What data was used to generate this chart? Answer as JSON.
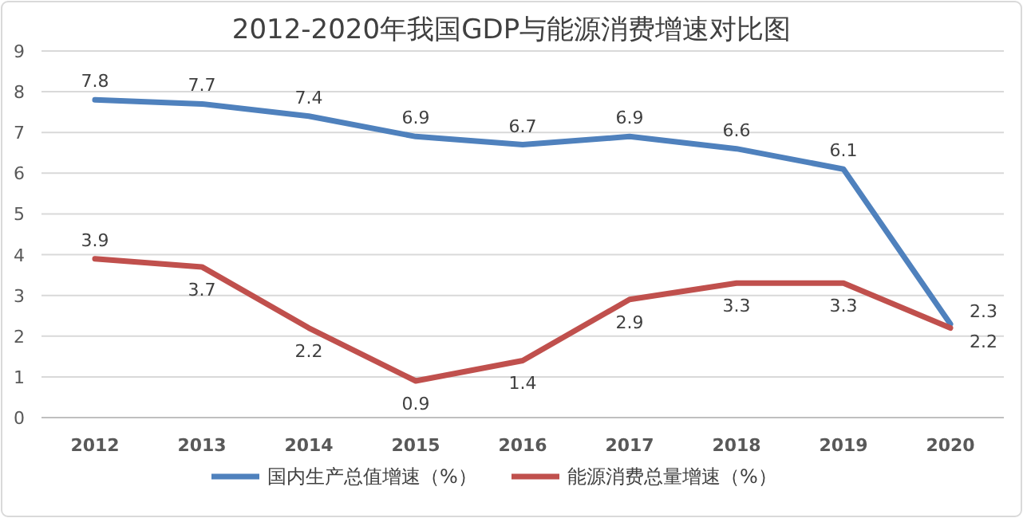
{
  "chart_data": {
    "type": "line",
    "title": "2012-2020年我国GDP与能源消费增速对比图",
    "categories": [
      "2012",
      "2013",
      "2014",
      "2015",
      "2016",
      "2017",
      "2018",
      "2019",
      "2020"
    ],
    "series": [
      {
        "name": "国内生产总值增速（%）",
        "color": "#4f81bd",
        "values": [
          7.8,
          7.7,
          7.4,
          6.9,
          6.7,
          6.9,
          6.6,
          6.1,
          2.3
        ]
      },
      {
        "name": "能源消费总量增速（%）",
        "color": "#c0504d",
        "values": [
          3.9,
          3.7,
          2.2,
          0.9,
          1.4,
          2.9,
          3.3,
          3.3,
          2.2
        ]
      }
    ],
    "ylim": [
      0,
      9
    ],
    "yticks": [
      0,
      1,
      2,
      3,
      4,
      5,
      6,
      7,
      8,
      9
    ],
    "grid": "y",
    "legend": "bottom",
    "data_labels": true,
    "marker": "none",
    "line_style": "solid"
  }
}
